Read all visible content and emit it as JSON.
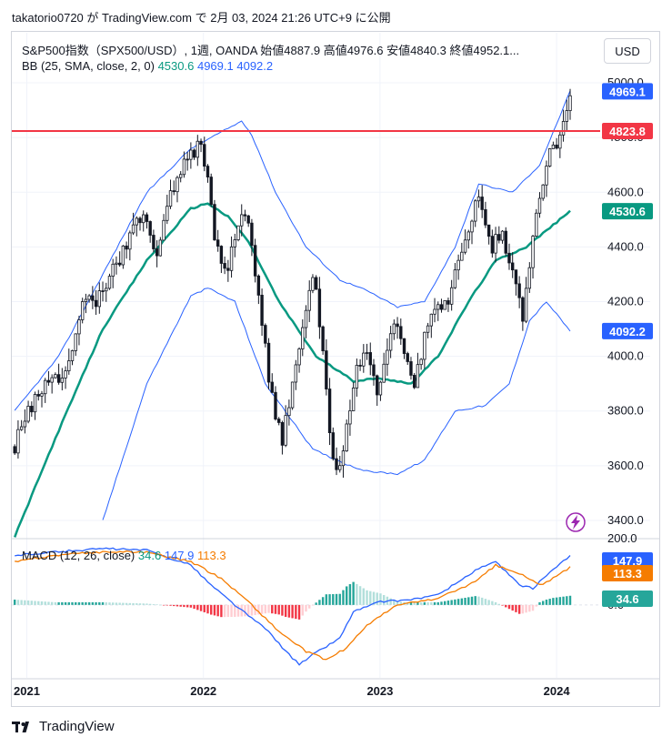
{
  "header": {
    "text": "takatorio0720 が TradingView.com で 2月 03, 2024 21:26 UTC+9 に公開"
  },
  "legend": {
    "symbol": "S&P500指数（SPX500/USD）, 1週, OANDA",
    "open_label": "始値",
    "open": "4887.9",
    "high_label": "高値",
    "high": "4976.6",
    "low_label": "安値",
    "low": "4840.3",
    "close_label": "終値",
    "close": "4952.1...",
    "bb_label": "BB (25, SMA, close, 2, 0)",
    "bb_mid": "4530.6",
    "bb_upper": "4969.1",
    "bb_lower": "4092.2",
    "macd_label": "MACD (12, 26, close)",
    "macd_hist": "34.6",
    "macd_line": "147.9",
    "macd_signal": "113.3"
  },
  "currency_button": "USD",
  "footer": {
    "brand": "TradingView",
    "logo_icon": "tradingview-logo-icon"
  },
  "colors": {
    "up": "#089981",
    "candle": "#131722",
    "bb_mid": "#089981",
    "bb_band": "#2962ff",
    "hline": "#f23645",
    "macd": "#2962ff",
    "signal": "#f57c00",
    "hist_pos": "#26a69a",
    "hist_pos_light": "#b2dfdb",
    "hist_neg": "#f23645",
    "hist_neg_light": "#ffcdd2"
  },
  "chart_data": [
    {
      "type": "candlestick",
      "title": "S&P500指数（SPX500/USD）, 1週, OANDA",
      "x_axis": {
        "type": "date",
        "range": [
          "2020-12-01",
          "2024-03-31"
        ],
        "tick_labels": [
          "2021",
          "2022",
          "2023",
          "2024"
        ]
      },
      "y_axis": {
        "ticks": [
          3400,
          3600,
          3800,
          4000,
          4200,
          4400,
          4600,
          4800,
          5000
        ],
        "tick_labels": [
          "3400.0",
          "3600.0",
          "3800.0",
          "4000.0",
          "4200.0",
          "4400.0",
          "4600.0",
          "4800.0",
          "5000.0"
        ],
        "range": [
          3340,
          5050
        ]
      },
      "horizontal_line": {
        "value": 4823.8,
        "label": "4823.8"
      },
      "price_labels": [
        {
          "value": 4969.1,
          "label": "4969.1",
          "series": "bb_upper"
        },
        {
          "value": 4823.8,
          "label": "4823.8",
          "series": "hline"
        },
        {
          "value": 4530.6,
          "label": "4530.6",
          "series": "bb_mid"
        },
        {
          "value": 4092.2,
          "label": "4092.2",
          "series": "bb_lower"
        }
      ],
      "close_anchors": [
        [
          "2020-12-07",
          3670
        ],
        [
          "2021-01-04",
          3800
        ],
        [
          "2021-02-15",
          3900
        ],
        [
          "2021-03-22",
          3950
        ],
        [
          "2021-04-26",
          4180
        ],
        [
          "2021-05-31",
          4220
        ],
        [
          "2021-06-28",
          4320
        ],
        [
          "2021-07-26",
          4400
        ],
        [
          "2021-08-30",
          4530
        ],
        [
          "2021-09-27",
          4380
        ],
        [
          "2021-10-25",
          4600
        ],
        [
          "2021-11-22",
          4700
        ],
        [
          "2021-12-27",
          4790
        ],
        [
          "2022-01-10",
          4660
        ],
        [
          "2022-01-24",
          4400
        ],
        [
          "2022-02-21",
          4330
        ],
        [
          "2022-03-28",
          4540
        ],
        [
          "2022-04-18",
          4300
        ],
        [
          "2022-05-09",
          4020
        ],
        [
          "2022-05-16",
          3900
        ],
        [
          "2022-06-13",
          3700
        ],
        [
          "2022-07-04",
          3900
        ],
        [
          "2022-08-15",
          4300
        ],
        [
          "2022-09-05",
          4050
        ],
        [
          "2022-09-26",
          3600
        ],
        [
          "2022-10-10",
          3590
        ],
        [
          "2022-11-14",
          3960
        ],
        [
          "2022-12-05",
          4030
        ],
        [
          "2022-12-26",
          3840
        ],
        [
          "2023-01-30",
          4130
        ],
        [
          "2023-02-20",
          3990
        ],
        [
          "2023-03-13",
          3880
        ],
        [
          "2023-04-10",
          4130
        ],
        [
          "2023-05-22",
          4200
        ],
        [
          "2023-06-19",
          4380
        ],
        [
          "2023-07-24",
          4580
        ],
        [
          "2023-08-21",
          4400
        ],
        [
          "2023-09-11",
          4460
        ],
        [
          "2023-10-02",
          4300
        ],
        [
          "2023-10-23",
          4140
        ],
        [
          "2023-11-13",
          4450
        ],
        [
          "2023-12-11",
          4720
        ],
        [
          "2024-01-08",
          4790
        ],
        [
          "2024-01-29",
          4952
        ]
      ],
      "bb_upper_anchors": [
        [
          "2020-12-07",
          3800
        ],
        [
          "2021-03-08",
          4000
        ],
        [
          "2021-06-07",
          4300
        ],
        [
          "2021-09-06",
          4600
        ],
        [
          "2021-12-06",
          4760
        ],
        [
          "2022-02-07",
          4820
        ],
        [
          "2022-03-21",
          4860
        ],
        [
          "2022-04-11",
          4810
        ],
        [
          "2022-05-30",
          4600
        ],
        [
          "2022-08-01",
          4400
        ],
        [
          "2022-10-10",
          4280
        ],
        [
          "2022-12-05",
          4240
        ],
        [
          "2023-02-06",
          4180
        ],
        [
          "2023-04-03",
          4200
        ],
        [
          "2023-06-05",
          4400
        ],
        [
          "2023-07-24",
          4630
        ],
        [
          "2023-10-02",
          4600
        ],
        [
          "2023-11-27",
          4700
        ],
        [
          "2024-01-29",
          4969
        ]
      ],
      "bb_mid_anchors": [
        [
          "2020-12-07",
          3340
        ],
        [
          "2021-03-01",
          3700
        ],
        [
          "2021-06-07",
          4100
        ],
        [
          "2021-09-06",
          4350
        ],
        [
          "2021-12-06",
          4540
        ],
        [
          "2022-01-10",
          4560
        ],
        [
          "2022-02-21",
          4510
        ],
        [
          "2022-04-04",
          4420
        ],
        [
          "2022-06-06",
          4200
        ],
        [
          "2022-08-22",
          4000
        ],
        [
          "2022-11-07",
          3910
        ],
        [
          "2023-01-02",
          3920
        ],
        [
          "2023-03-06",
          3900
        ],
        [
          "2023-05-01",
          4000
        ],
        [
          "2023-07-03",
          4200
        ],
        [
          "2023-08-28",
          4350
        ],
        [
          "2023-10-30",
          4400
        ],
        [
          "2023-12-18",
          4470
        ],
        [
          "2024-01-29",
          4530.6
        ]
      ],
      "bb_lower_anchors": [
        [
          "2021-06-07",
          3400
        ],
        [
          "2021-09-06",
          3900
        ],
        [
          "2021-12-06",
          4220
        ],
        [
          "2022-01-10",
          4250
        ],
        [
          "2022-03-07",
          4200
        ],
        [
          "2022-05-09",
          3900
        ],
        [
          "2022-08-15",
          3660
        ],
        [
          "2022-10-31",
          3600
        ],
        [
          "2022-12-05",
          3580
        ],
        [
          "2023-02-06",
          3570
        ],
        [
          "2023-04-03",
          3620
        ],
        [
          "2023-06-05",
          3800
        ],
        [
          "2023-08-07",
          3820
        ],
        [
          "2023-09-25",
          3900
        ],
        [
          "2023-11-06",
          4130
        ],
        [
          "2023-12-11",
          4200
        ],
        [
          "2024-01-29",
          4092.2
        ]
      ]
    },
    {
      "type": "line",
      "title": "MACD (12, 26, close)",
      "y_axis": {
        "ticks": [
          0,
          200
        ],
        "tick_labels": [
          "0.0",
          "200.0"
        ],
        "range": [
          -220,
          200
        ]
      },
      "price_labels": [
        {
          "value": 147.9,
          "label": "147.9",
          "series": "macd"
        },
        {
          "value": 113.3,
          "label": "113.3",
          "series": "signal"
        },
        {
          "value": 34.6,
          "label": "34.6",
          "series": "histogram"
        }
      ],
      "macd_anchors": [
        [
          "2020-12-07",
          150
        ],
        [
          "2021-03-01",
          160
        ],
        [
          "2021-06-07",
          170
        ],
        [
          "2021-09-06",
          165
        ],
        [
          "2021-12-06",
          120
        ],
        [
          "2022-01-17",
          60
        ],
        [
          "2022-03-07",
          0
        ],
        [
          "2022-05-16",
          -80
        ],
        [
          "2022-06-20",
          -140
        ],
        [
          "2022-07-18",
          -180
        ],
        [
          "2022-08-15",
          -150
        ],
        [
          "2022-10-10",
          -100
        ],
        [
          "2022-11-07",
          -20
        ],
        [
          "2023-01-02",
          10
        ],
        [
          "2023-02-27",
          15
        ],
        [
          "2023-05-01",
          30
        ],
        [
          "2023-07-24",
          110
        ],
        [
          "2023-08-28",
          130
        ],
        [
          "2023-10-16",
          60
        ],
        [
          "2023-11-13",
          50
        ],
        [
          "2023-12-11",
          90
        ],
        [
          "2024-01-29",
          147.9
        ]
      ],
      "signal_anchors": [
        [
          "2020-12-07",
          130
        ],
        [
          "2021-03-01",
          150
        ],
        [
          "2021-06-07",
          160
        ],
        [
          "2021-09-06",
          160
        ],
        [
          "2021-12-06",
          130
        ],
        [
          "2022-02-07",
          80
        ],
        [
          "2022-04-04",
          10
        ],
        [
          "2022-06-06",
          -80
        ],
        [
          "2022-08-01",
          -140
        ],
        [
          "2022-09-12",
          -165
        ],
        [
          "2022-10-24",
          -130
        ],
        [
          "2022-12-05",
          -60
        ],
        [
          "2023-02-06",
          0
        ],
        [
          "2023-05-01",
          20
        ],
        [
          "2023-07-17",
          70
        ],
        [
          "2023-08-28",
          120
        ],
        [
          "2023-10-23",
          90
        ],
        [
          "2023-11-27",
          60
        ],
        [
          "2023-12-25",
          80
        ],
        [
          "2024-01-29",
          113.3
        ]
      ]
    }
  ]
}
